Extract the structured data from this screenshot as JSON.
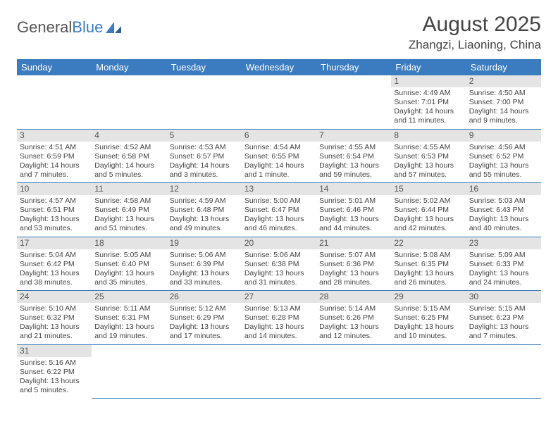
{
  "logo": {
    "text1": "General",
    "text2": "Blue"
  },
  "title": "August 2025",
  "location": "Zhangzi, Liaoning, China",
  "day_headers": [
    "Sunday",
    "Monday",
    "Tuesday",
    "Wednesday",
    "Thursday",
    "Friday",
    "Saturday"
  ],
  "colors": {
    "header_bg": "#3b7bbf",
    "header_text": "#ffffff",
    "daynum_bg": "#e4e4e4",
    "cell_border": "#3b7bbf",
    "text": "#444444"
  },
  "grid": [
    [
      null,
      null,
      null,
      null,
      null,
      {
        "n": "1",
        "sr": "Sunrise: 4:49 AM",
        "ss": "Sunset: 7:01 PM",
        "dl": "Daylight: 14 hours and 11 minutes."
      },
      {
        "n": "2",
        "sr": "Sunrise: 4:50 AM",
        "ss": "Sunset: 7:00 PM",
        "dl": "Daylight: 14 hours and 9 minutes."
      }
    ],
    [
      {
        "n": "3",
        "sr": "Sunrise: 4:51 AM",
        "ss": "Sunset: 6:59 PM",
        "dl": "Daylight: 14 hours and 7 minutes."
      },
      {
        "n": "4",
        "sr": "Sunrise: 4:52 AM",
        "ss": "Sunset: 6:58 PM",
        "dl": "Daylight: 14 hours and 5 minutes."
      },
      {
        "n": "5",
        "sr": "Sunrise: 4:53 AM",
        "ss": "Sunset: 6:57 PM",
        "dl": "Daylight: 14 hours and 3 minutes."
      },
      {
        "n": "6",
        "sr": "Sunrise: 4:54 AM",
        "ss": "Sunset: 6:55 PM",
        "dl": "Daylight: 14 hours and 1 minute."
      },
      {
        "n": "7",
        "sr": "Sunrise: 4:55 AM",
        "ss": "Sunset: 6:54 PM",
        "dl": "Daylight: 13 hours and 59 minutes."
      },
      {
        "n": "8",
        "sr": "Sunrise: 4:55 AM",
        "ss": "Sunset: 6:53 PM",
        "dl": "Daylight: 13 hours and 57 minutes."
      },
      {
        "n": "9",
        "sr": "Sunrise: 4:56 AM",
        "ss": "Sunset: 6:52 PM",
        "dl": "Daylight: 13 hours and 55 minutes."
      }
    ],
    [
      {
        "n": "10",
        "sr": "Sunrise: 4:57 AM",
        "ss": "Sunset: 6:51 PM",
        "dl": "Daylight: 13 hours and 53 minutes."
      },
      {
        "n": "11",
        "sr": "Sunrise: 4:58 AM",
        "ss": "Sunset: 6:49 PM",
        "dl": "Daylight: 13 hours and 51 minutes."
      },
      {
        "n": "12",
        "sr": "Sunrise: 4:59 AM",
        "ss": "Sunset: 6:48 PM",
        "dl": "Daylight: 13 hours and 49 minutes."
      },
      {
        "n": "13",
        "sr": "Sunrise: 5:00 AM",
        "ss": "Sunset: 6:47 PM",
        "dl": "Daylight: 13 hours and 46 minutes."
      },
      {
        "n": "14",
        "sr": "Sunrise: 5:01 AM",
        "ss": "Sunset: 6:46 PM",
        "dl": "Daylight: 13 hours and 44 minutes."
      },
      {
        "n": "15",
        "sr": "Sunrise: 5:02 AM",
        "ss": "Sunset: 6:44 PM",
        "dl": "Daylight: 13 hours and 42 minutes."
      },
      {
        "n": "16",
        "sr": "Sunrise: 5:03 AM",
        "ss": "Sunset: 6:43 PM",
        "dl": "Daylight: 13 hours and 40 minutes."
      }
    ],
    [
      {
        "n": "17",
        "sr": "Sunrise: 5:04 AM",
        "ss": "Sunset: 6:42 PM",
        "dl": "Daylight: 13 hours and 38 minutes."
      },
      {
        "n": "18",
        "sr": "Sunrise: 5:05 AM",
        "ss": "Sunset: 6:40 PM",
        "dl": "Daylight: 13 hours and 35 minutes."
      },
      {
        "n": "19",
        "sr": "Sunrise: 5:06 AM",
        "ss": "Sunset: 6:39 PM",
        "dl": "Daylight: 13 hours and 33 minutes."
      },
      {
        "n": "20",
        "sr": "Sunrise: 5:06 AM",
        "ss": "Sunset: 6:38 PM",
        "dl": "Daylight: 13 hours and 31 minutes."
      },
      {
        "n": "21",
        "sr": "Sunrise: 5:07 AM",
        "ss": "Sunset: 6:36 PM",
        "dl": "Daylight: 13 hours and 28 minutes."
      },
      {
        "n": "22",
        "sr": "Sunrise: 5:08 AM",
        "ss": "Sunset: 6:35 PM",
        "dl": "Daylight: 13 hours and 26 minutes."
      },
      {
        "n": "23",
        "sr": "Sunrise: 5:09 AM",
        "ss": "Sunset: 6:33 PM",
        "dl": "Daylight: 13 hours and 24 minutes."
      }
    ],
    [
      {
        "n": "24",
        "sr": "Sunrise: 5:10 AM",
        "ss": "Sunset: 6:32 PM",
        "dl": "Daylight: 13 hours and 21 minutes."
      },
      {
        "n": "25",
        "sr": "Sunrise: 5:11 AM",
        "ss": "Sunset: 6:31 PM",
        "dl": "Daylight: 13 hours and 19 minutes."
      },
      {
        "n": "26",
        "sr": "Sunrise: 5:12 AM",
        "ss": "Sunset: 6:29 PM",
        "dl": "Daylight: 13 hours and 17 minutes."
      },
      {
        "n": "27",
        "sr": "Sunrise: 5:13 AM",
        "ss": "Sunset: 6:28 PM",
        "dl": "Daylight: 13 hours and 14 minutes."
      },
      {
        "n": "28",
        "sr": "Sunrise: 5:14 AM",
        "ss": "Sunset: 6:26 PM",
        "dl": "Daylight: 13 hours and 12 minutes."
      },
      {
        "n": "29",
        "sr": "Sunrise: 5:15 AM",
        "ss": "Sunset: 6:25 PM",
        "dl": "Daylight: 13 hours and 10 minutes."
      },
      {
        "n": "30",
        "sr": "Sunrise: 5:15 AM",
        "ss": "Sunset: 6:23 PM",
        "dl": "Daylight: 13 hours and 7 minutes."
      }
    ],
    [
      {
        "n": "31",
        "sr": "Sunrise: 5:16 AM",
        "ss": "Sunset: 6:22 PM",
        "dl": "Daylight: 13 hours and 5 minutes."
      },
      null,
      null,
      null,
      null,
      null,
      null
    ]
  ]
}
